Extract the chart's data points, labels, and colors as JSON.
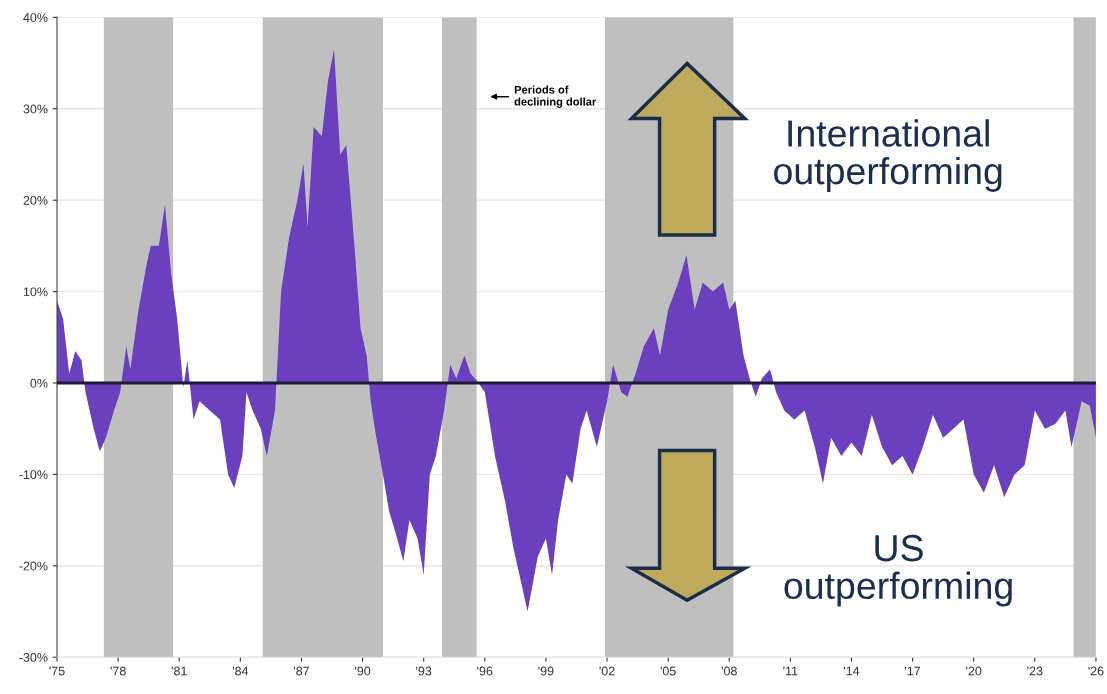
{
  "chart_data": {
    "type": "area",
    "x": [
      1975.0,
      1975.3,
      1975.6,
      1975.9,
      1976.2,
      1976.4,
      1976.8,
      1977.1,
      1977.4,
      1977.8,
      1978.1,
      1978.4,
      1978.6,
      1979.0,
      1979.4,
      1979.6,
      1980.0,
      1980.3,
      1980.6,
      1980.9,
      1981.2,
      1981.4,
      1981.7,
      1982.0,
      1982.5,
      1983.0,
      1983.4,
      1983.7,
      1984.1,
      1984.3,
      1984.6,
      1985.0,
      1985.3,
      1985.7,
      1986.0,
      1986.4,
      1986.8,
      1987.1,
      1987.3,
      1987.6,
      1988.0,
      1988.3,
      1988.6,
      1988.9,
      1989.2,
      1989.6,
      1989.9,
      1990.2,
      1990.4,
      1990.6,
      1991.0,
      1991.3,
      1991.7,
      1992.0,
      1992.3,
      1992.7,
      1993.0,
      1993.3,
      1993.6,
      1994.0,
      1994.3,
      1994.6,
      1995.0,
      1995.3,
      1995.6,
      1996.0,
      1996.5,
      1997.0,
      1997.4,
      1997.8,
      1998.1,
      1998.6,
      1999.0,
      1999.3,
      1999.6,
      2000.0,
      2000.3,
      2000.7,
      2001.0,
      2001.5,
      2002.0,
      2002.3,
      2002.7,
      2003.0,
      2003.4,
      2003.8,
      2004.3,
      2004.6,
      2005.0,
      2005.5,
      2005.9,
      2006.3,
      2006.7,
      2007.2,
      2007.7,
      2008.0,
      2008.3,
      2008.7,
      2009.0,
      2009.3,
      2009.6,
      2010.0,
      2010.3,
      2010.7,
      2011.2,
      2011.7,
      2012.2,
      2012.6,
      2013.0,
      2013.5,
      2014.0,
      2014.5,
      2015.0,
      2015.5,
      2016.0,
      2016.5,
      2017.0,
      2017.5,
      2018.0,
      2018.5,
      2019.0,
      2019.5,
      2020.0,
      2020.5,
      2021.0,
      2021.5,
      2022.0,
      2022.5,
      2023.0,
      2023.5,
      2024.0,
      2024.5,
      2024.8,
      2025.3,
      2025.7,
      2026.0
    ],
    "series": [
      {
        "color": "#6a40bf",
        "values": [
          9,
          7,
          1,
          3.5,
          2.5,
          -1,
          -5,
          -7.5,
          -6,
          -3,
          -1,
          4,
          1.5,
          8,
          13,
          15,
          15,
          19.5,
          12,
          7,
          -0.5,
          2.5,
          -4,
          -2,
          -3,
          -4,
          -10,
          -11.5,
          -8,
          -1,
          -3,
          -5,
          -8,
          -3,
          10,
          16,
          20,
          24,
          17,
          28,
          27,
          33,
          36.5,
          25,
          26,
          15,
          6,
          3,
          -2,
          -5,
          -10,
          -14,
          -17,
          -19.5,
          -15,
          -17,
          -21,
          -10,
          -8,
          -3,
          2,
          0.5,
          3,
          1,
          0.3,
          -1,
          -8,
          -13,
          -18,
          -22,
          -25,
          -19,
          -17,
          -21,
          -15,
          -10,
          -11,
          -5,
          -3,
          -7,
          -2,
          2,
          -1,
          -1.5,
          1,
          4,
          6,
          3,
          8,
          11,
          14,
          8,
          11,
          10,
          11,
          8,
          9,
          3,
          0.5,
          -1.5,
          0.5,
          1.5,
          -1,
          -3,
          -4,
          -3,
          -7,
          -11,
          -6,
          -8,
          -6.5,
          -8,
          -3.5,
          -7,
          -9,
          -8,
          -10,
          -7,
          -3.5,
          -6,
          -5,
          -4,
          -10,
          -12,
          -9,
          -12.5,
          -10,
          -9,
          -3,
          -5,
          -4.5,
          -3,
          -7,
          -2,
          -2.5,
          -6
        ]
      }
    ],
    "xlim": [
      1975,
      2026
    ],
    "xticks": [
      {
        "value": 1975,
        "label": "'75"
      },
      {
        "value": 1978,
        "label": "'78"
      },
      {
        "value": 1981,
        "label": "'81"
      },
      {
        "value": 1984,
        "label": "'84"
      },
      {
        "value": 1987,
        "label": "'87"
      },
      {
        "value": 1990,
        "label": "'90"
      },
      {
        "value": 1993,
        "label": "'93"
      },
      {
        "value": 1996,
        "label": "'96"
      },
      {
        "value": 1999,
        "label": "'99"
      },
      {
        "value": 2002,
        "label": "'02"
      },
      {
        "value": 2005,
        "label": "'05"
      },
      {
        "value": 2008,
        "label": "'08"
      },
      {
        "value": 2011,
        "label": "'11"
      },
      {
        "value": 2014,
        "label": "'14"
      },
      {
        "value": 2017,
        "label": "'17"
      },
      {
        "value": 2020,
        "label": "'20"
      },
      {
        "value": 2023,
        "label": "'23"
      },
      {
        "value": 2026,
        "label": "'26"
      }
    ],
    "ylim": [
      -30,
      40
    ],
    "yticks": [
      {
        "value": -30,
        "label": "-30%"
      },
      {
        "value": -20,
        "label": "-20%"
      },
      {
        "value": -10,
        "label": "-10%"
      },
      {
        "value": 0,
        "label": "0%"
      },
      {
        "value": 10,
        "label": "10%"
      },
      {
        "value": 20,
        "label": "20%"
      },
      {
        "value": 30,
        "label": "30%"
      },
      {
        "value": 40,
        "label": "40%"
      }
    ],
    "grid": "y",
    "bands": [
      {
        "axis": "x",
        "from": 1977.3,
        "to": 1980.7,
        "color": "#bfbfbf"
      },
      {
        "axis": "x",
        "from": 1985.1,
        "to": 1991.0,
        "color": "#bfbfbf"
      },
      {
        "axis": "x",
        "from": 1993.9,
        "to": 1995.6,
        "color": "#bfbfbf"
      },
      {
        "axis": "x",
        "from": 2001.9,
        "to": 2008.2,
        "color": "#bfbfbf"
      },
      {
        "axis": "x",
        "from": 2024.9,
        "to": 2026,
        "color": "#bfbfbf"
      }
    ],
    "ref_lines": [
      {
        "axis": "y",
        "value": 0,
        "color": "#1e1a3a"
      }
    ],
    "annotations": [
      "Periods of\ndeclining dollar",
      "International\noutperforming",
      "US\noutperforming"
    ]
  }
}
